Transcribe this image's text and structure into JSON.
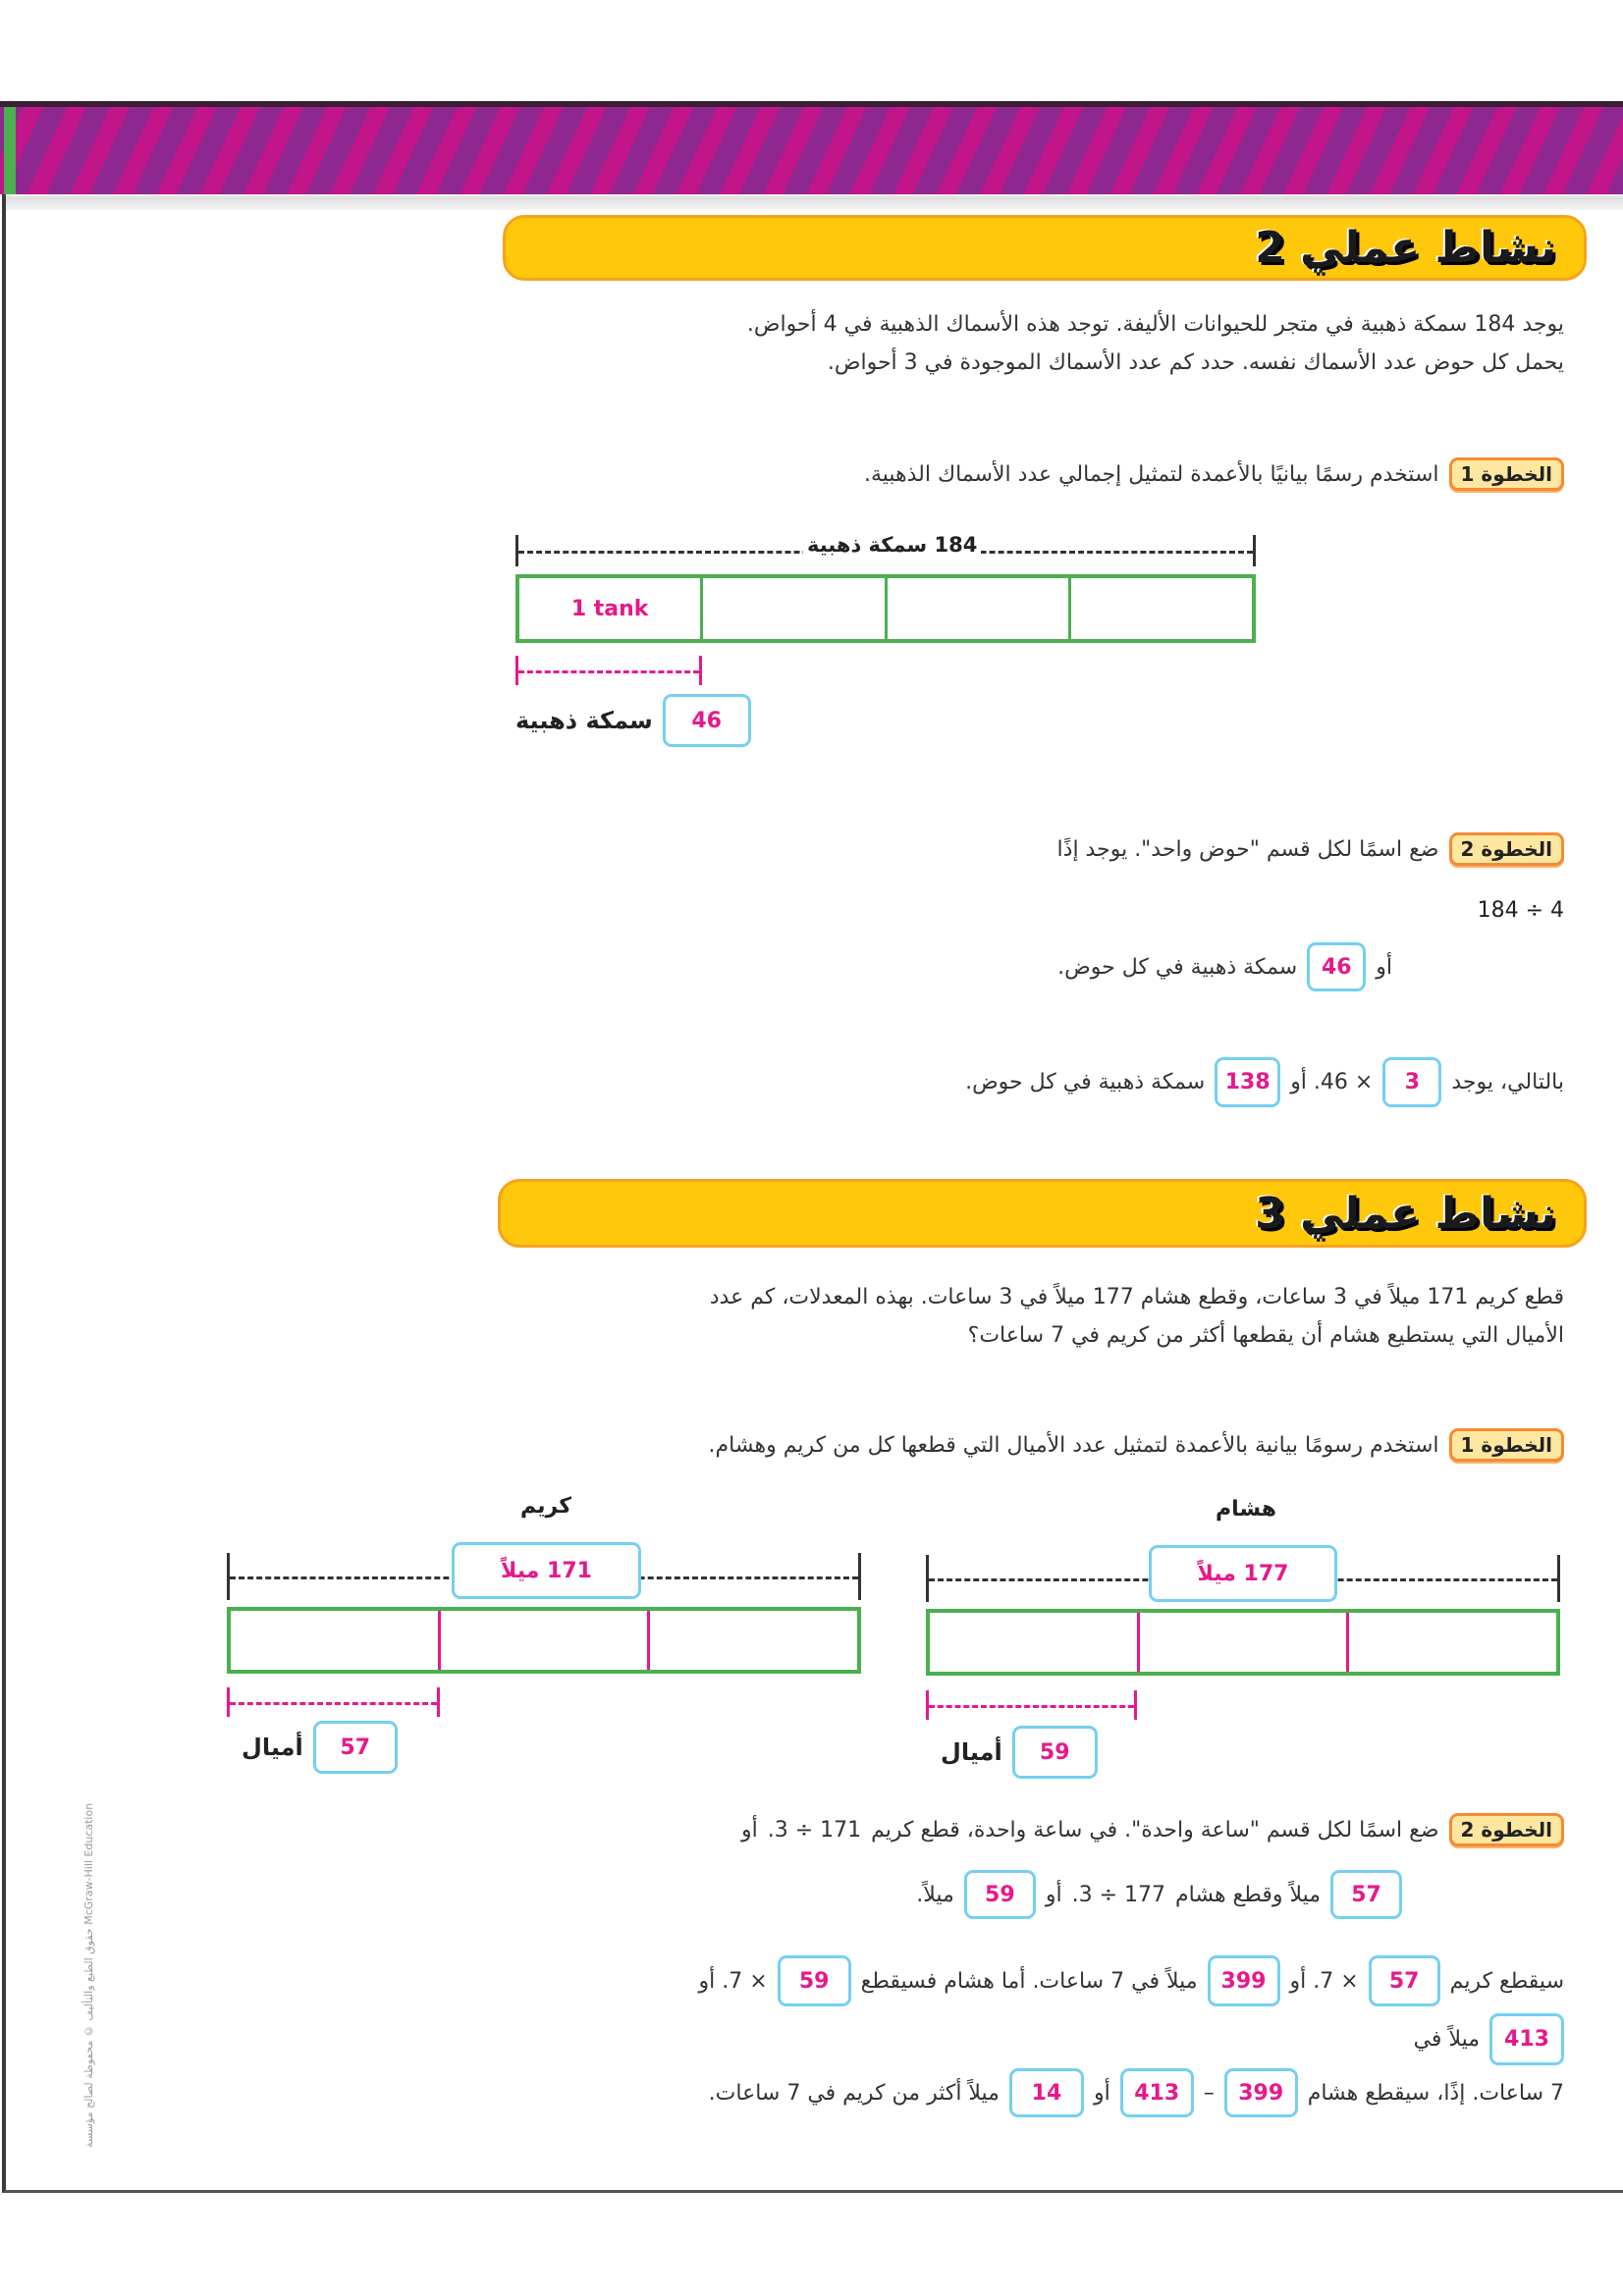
{
  "colors": {
    "accent_yellow": "#ffc80a",
    "banner_purple": "#8e278f",
    "banner_magenta": "#c2158a",
    "answer_pink": "#e6198a",
    "answer_box_border": "#74cff3",
    "bar_green": "#4caf50"
  },
  "side_credit": "حقوق الطبع والتأليف © محفوظة لصالح مؤسسة McGraw-Hill Education",
  "activity2": {
    "title": "نشاط عملي 2",
    "problem": [
      "يوجد 184 سمكة ذهبية في متجر للحيوانات الأليفة. توجد هذه الأسماك الذهبية في 4 أحواض.",
      "يحمل كل حوض عدد الأسماك نفسه. حدد كم عدد الأسماك الموجودة في 3 أحواض."
    ],
    "step1": {
      "badge": "الخطوة 1",
      "text": "استخدم رسمًا بيانيًا بالأعمدة لتمثيل إجمالي عدد الأسماك الذهبية."
    },
    "bar": {
      "total_label": "184 سمكة ذهبية",
      "cell_label": "1 tank",
      "answer": "46",
      "unit": "سمكة ذهبية"
    },
    "step2": {
      "badge": "الخطوة 2",
      "text": "ضع اسمًا لكل قسم \"حوض واحد\". يوجد إذًا",
      "expression": "184 ÷ 4",
      "or": "أو",
      "ans_per_tank": "46",
      "per_tank_text": "سمكة ذهبية في كل حوض.",
      "thus": "بالتالي، يوجد",
      "ans_tanks": "3",
      "times": "× 46. أو",
      "ans_total": "138",
      "total_text": "سمكة ذهبية في كل حوض."
    }
  },
  "activity3": {
    "title": "نشاط عملي 3",
    "problem": [
      "قطع كريم 171 ميلاً في 3 ساعات، وقطع هشام 177 ميلاً في 3 ساعات. بهذه المعدلات، كم عدد",
      "الأميال التي يستطيع هشام أن يقطعها أكثر من كريم في 7 ساعات؟"
    ],
    "step1": {
      "badge": "الخطوة 1",
      "text": "استخدم رسومًا بيانية بالأعمدة لتمثيل عدد الأميال التي قطعها كل من كريم وهشام."
    },
    "karim": {
      "name": "كريم",
      "total": "171 ميلاً",
      "answer": "57",
      "unit": "أميال"
    },
    "hesham": {
      "name": "هشام",
      "total": "177 ميلاً",
      "answer": "59",
      "unit": "أميال"
    },
    "step2": {
      "badge": "الخطوة 2",
      "l1_text": "ضع اسمًا لكل قسم \"ساعة واحدة\". في ساعة واحدة، قطع كريم",
      "l1_expr": "171 ÷ 3.",
      "l1_or": "أو",
      "l2_ans1": "57",
      "l2_text": "ميلاً وقطع هشام",
      "l2_expr": "177 ÷ 3.",
      "l2_or": "أو",
      "l2_ans2": "59",
      "l2_end": "ميلاً.",
      "l3_text1": "سيقطع كريم",
      "l3_ans1": "57",
      "l3_times1": "× 7. أو",
      "l3_ans2": "399",
      "l3_text2": "ميلاً في 7 ساعات. أما هشام فسيقطع",
      "l3_ans3": "59",
      "l3_times2": "× 7. أو",
      "l4_ans": "413",
      "l4_text": "ميلاً في",
      "l5_text1": "7 ساعات. إذًا، سيقطع هشام",
      "l5_ans1": "399",
      "l5_minus": "–",
      "l5_ans2": "413",
      "l5_or": "أو",
      "l5_ans3": "14",
      "l5_end": "ميلاً أكثر من كريم في 7 ساعات."
    }
  }
}
